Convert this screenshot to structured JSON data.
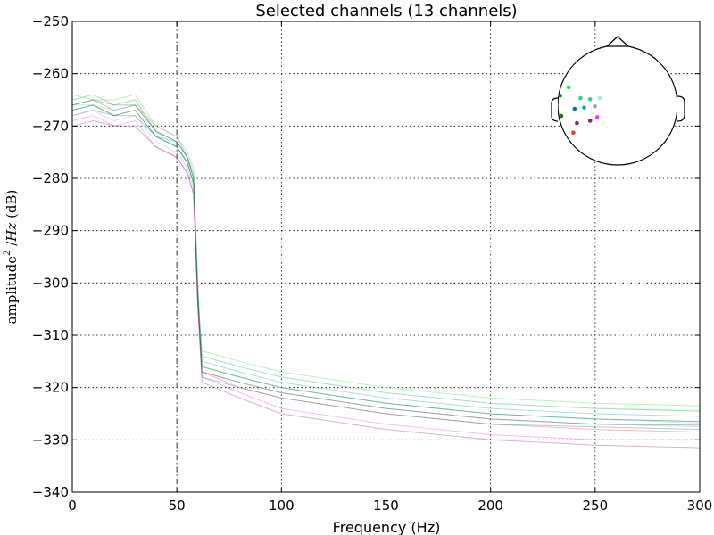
{
  "chart_data": {
    "type": "line",
    "title": "Selected channels (13 channels)",
    "xlabel": "Frequency (Hz)",
    "ylabel_parts": [
      "amplitude",
      "2",
      " /",
      "Hz",
      " (dB)"
    ],
    "xlim": [
      0,
      300
    ],
    "ylim": [
      -340,
      -250
    ],
    "xticks": [
      0,
      50,
      100,
      150,
      200,
      250,
      300
    ],
    "yticks": [
      -250,
      -260,
      -270,
      -280,
      -290,
      -300,
      -310,
      -320,
      -330,
      -340
    ],
    "grid": true,
    "grid_style": "dotted",
    "vline": {
      "x": 50,
      "style": "dash-dot",
      "color": "#555555"
    },
    "series": [
      {
        "color": "#e23b3b",
        "x": [
          0,
          10,
          20,
          30,
          40,
          50,
          55,
          58,
          60,
          62,
          80,
          100,
          150,
          200,
          250,
          300
        ],
        "y": [
          -266,
          -265,
          -267,
          -266,
          -270,
          -272,
          -276,
          -279,
          -300,
          -317,
          -320,
          -322,
          -325,
          -327,
          -328,
          -328.5
        ]
      },
      {
        "color": "#1a8c3a",
        "x": [
          0,
          10,
          20,
          30,
          40,
          50,
          55,
          58,
          60,
          62,
          80,
          100,
          150,
          200,
          250,
          300
        ],
        "y": [
          -265,
          -264,
          -266,
          -265,
          -271,
          -273,
          -276,
          -280,
          -302,
          -314,
          -316,
          -318,
          -321,
          -323,
          -324,
          -324.5
        ]
      },
      {
        "color": "#3cd84c",
        "x": [
          0,
          10,
          20,
          30,
          40,
          50,
          55,
          58,
          60,
          62,
          80,
          100,
          150,
          200,
          250,
          300
        ],
        "y": [
          -264,
          -265,
          -265,
          -264,
          -270,
          -272,
          -275,
          -278,
          -303,
          -313,
          -315,
          -317,
          -320,
          -322,
          -323,
          -323.5
        ]
      },
      {
        "color": "#2ad48c",
        "x": [
          0,
          10,
          20,
          30,
          40,
          50,
          55,
          58,
          60,
          62,
          80,
          100,
          150,
          200,
          250,
          300
        ],
        "y": [
          -266,
          -266,
          -267,
          -266,
          -271,
          -274,
          -277,
          -281,
          -301,
          -316,
          -318,
          -320,
          -323,
          -325,
          -326,
          -326.5
        ]
      },
      {
        "color": "#1e9ea0",
        "x": [
          0,
          10,
          20,
          30,
          40,
          50,
          55,
          58,
          60,
          62,
          80,
          100,
          150,
          200,
          250,
          300
        ],
        "y": [
          -267,
          -266,
          -268,
          -267,
          -272,
          -273,
          -276,
          -280,
          -304,
          -315,
          -317,
          -319,
          -322,
          -324,
          -325,
          -325.5
        ]
      },
      {
        "color": "#1d6f8f",
        "x": [
          0,
          10,
          20,
          30,
          40,
          50,
          55,
          58,
          60,
          62,
          80,
          100,
          150,
          200,
          250,
          300
        ],
        "y": [
          -268,
          -267,
          -268,
          -268,
          -272,
          -274,
          -277,
          -281,
          -302,
          -318,
          -320,
          -322,
          -325,
          -327,
          -327.5,
          -328
        ]
      },
      {
        "color": "#a8ecd8",
        "x": [
          0,
          10,
          20,
          30,
          40,
          50,
          55,
          58,
          60,
          62,
          80,
          100,
          150,
          200,
          250,
          300
        ],
        "y": [
          -265,
          -264,
          -266,
          -265,
          -270,
          -272,
          -275,
          -279,
          -300,
          -314,
          -316,
          -318,
          -321,
          -323,
          -324,
          -324.2
        ]
      },
      {
        "color": "#a88ce8",
        "x": [
          0,
          10,
          20,
          30,
          40,
          50,
          55,
          58,
          60,
          62,
          80,
          100,
          150,
          200,
          250,
          300
        ],
        "y": [
          -268,
          -267,
          -269,
          -268,
          -273,
          -275,
          -278,
          -282,
          -303,
          -317,
          -319,
          -321,
          -324,
          -326,
          -327,
          -327.5
        ]
      },
      {
        "color": "#e040e0",
        "x": [
          0,
          10,
          20,
          30,
          40,
          50,
          55,
          58,
          60,
          62,
          80,
          100,
          150,
          200,
          250,
          300
        ],
        "y": [
          -269,
          -268,
          -270,
          -269,
          -274,
          -276,
          -279,
          -283,
          -305,
          -318,
          -321,
          -324,
          -327,
          -329,
          -330,
          -330
        ]
      },
      {
        "color": "#7a2a70",
        "x": [
          0,
          10,
          20,
          30,
          40,
          50,
          55,
          58,
          60,
          62,
          80,
          100,
          150,
          200,
          250,
          300
        ],
        "y": [
          -270,
          -269,
          -270,
          -270,
          -274,
          -276,
          -279,
          -283,
          -304,
          -319,
          -322,
          -325,
          -328,
          -330,
          -331,
          -331.5
        ]
      },
      {
        "color": "#7ec8f0",
        "x": [
          0,
          10,
          20,
          30,
          40,
          50,
          55,
          58,
          60,
          62,
          80,
          100,
          150,
          200,
          250,
          300
        ],
        "y": [
          -266,
          -265,
          -267,
          -266,
          -271,
          -273,
          -276,
          -280,
          -301,
          -316,
          -318,
          -320,
          -323,
          -325,
          -326,
          -326.8
        ]
      },
      {
        "color": "#2a6b2a",
        "x": [
          0,
          10,
          20,
          30,
          40,
          50,
          55,
          58,
          60,
          62,
          80,
          100,
          150,
          200,
          250,
          300
        ],
        "y": [
          -266,
          -265,
          -266,
          -266,
          -271,
          -273,
          -276,
          -280,
          -302,
          -316,
          -318,
          -320,
          -323,
          -325,
          -326,
          -326.5
        ]
      },
      {
        "color": "#0a4a0a",
        "x": [
          0,
          10,
          20,
          30,
          40,
          50,
          55,
          58,
          60,
          62,
          80,
          100,
          150,
          200,
          250,
          300
        ],
        "y": [
          -267,
          -266,
          -268,
          -267,
          -272,
          -274,
          -277,
          -281,
          -303,
          -317,
          -319,
          -321,
          -324,
          -326,
          -327,
          -327.2
        ]
      }
    ],
    "sensor_inset": {
      "sensors": [
        {
          "color": "#3cd84c",
          "u": 0.09,
          "v": 0.35
        },
        {
          "color": "#1a8c3a",
          "u": 0.02,
          "v": 0.42
        },
        {
          "color": "#2ad48c",
          "u": 0.19,
          "v": 0.44
        },
        {
          "color": "#2ad48c",
          "u": 0.27,
          "v": 0.45
        },
        {
          "color": "#a8ecd8",
          "u": 0.35,
          "v": 0.44
        },
        {
          "color": "#1d6f8f",
          "u": 0.14,
          "v": 0.53
        },
        {
          "color": "#1e9ea0",
          "u": 0.22,
          "v": 0.52
        },
        {
          "color": "#a88ce8",
          "u": 0.31,
          "v": 0.51
        },
        {
          "color": "#2a6b2a",
          "u": 0.03,
          "v": 0.59
        },
        {
          "color": "#e040e0",
          "u": 0.33,
          "v": 0.6
        },
        {
          "color": "#7a2a70",
          "u": 0.16,
          "v": 0.65
        },
        {
          "color": "#7a2a70",
          "u": 0.27,
          "v": 0.63
        },
        {
          "color": "#e23b3b",
          "u": 0.13,
          "v": 0.73
        }
      ]
    }
  }
}
